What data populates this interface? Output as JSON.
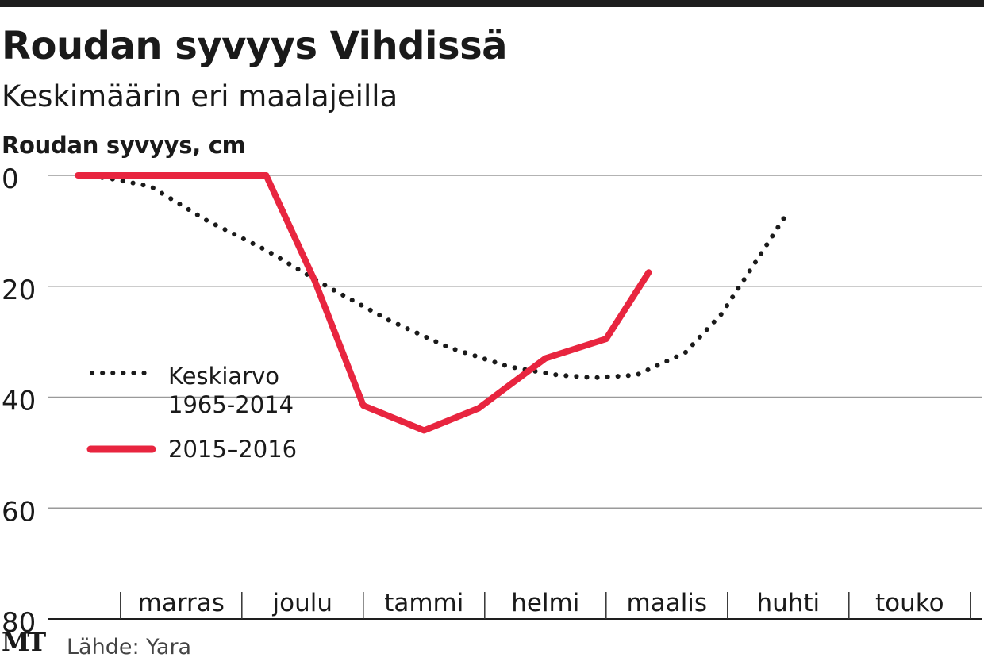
{
  "header": {
    "title": "Roudan syvyys Vihdissä",
    "subtitle": "Keskimäärin eri maalajeilla"
  },
  "footer": {
    "logo": "MT",
    "source": "Lähde: Yara"
  },
  "colors": {
    "average": "#1a1a1a",
    "current": "#e8253f",
    "grid": "#9a9a9a",
    "rule": "#1e1e1e"
  },
  "chart_data": {
    "type": "line",
    "title": "Roudan syvyys Vihdissä",
    "subtitle": "Keskimäärin eri maalajeilla",
    "ylabel": "Roudan syvyys, cm",
    "xlabel": "",
    "y_inverted": true,
    "ylim": [
      0,
      80
    ],
    "yticks": [
      0,
      20,
      40,
      60,
      80
    ],
    "x_unit": "months since 1 October",
    "xlim": [
      0,
      7.5
    ],
    "categories": [
      "marras",
      "joulu",
      "tammi",
      "helmi",
      "maalis",
      "huhti",
      "touko"
    ],
    "grid": true,
    "legend_position": "middle-left",
    "series": [
      {
        "name": "Keskiarvo 1965-2014",
        "style": "dotted",
        "x": [
          0.28,
          0.5,
          0.85,
          1.3,
          1.8,
          2.3,
          2.8,
          3.3,
          3.8,
          4.2,
          4.5,
          4.85,
          5.25,
          5.55,
          5.85,
          6.1
        ],
        "y": [
          0,
          0.5,
          2,
          8,
          13.5,
          20,
          26,
          31,
          34.5,
          36,
          36.5,
          36,
          32,
          25,
          15,
          6.5
        ]
      },
      {
        "name": "2015–2016",
        "style": "solid",
        "x": [
          0.25,
          1.0,
          1.8,
          2.2,
          2.6,
          3.1,
          3.55,
          4.1,
          4.6
        ],
        "y": [
          0,
          0,
          0,
          19,
          41.5,
          46,
          42,
          33,
          29.5
        ]
      }
    ],
    "series_extra": {
      "current_last": {
        "x": 4.95,
        "y": 17.5
      }
    }
  }
}
